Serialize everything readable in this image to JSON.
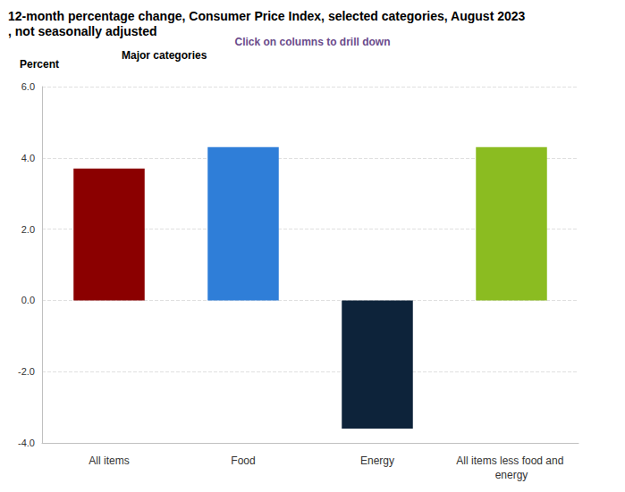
{
  "chart_data": {
    "type": "bar",
    "title": "12-month percentage change, Consumer Price Index, selected categories, August 2023, not seasonally adjusted",
    "subtitle": "Click on columns to drill down",
    "y_label": "Percent",
    "annotation": "Major categories",
    "categories": [
      "All items",
      "Food",
      "Energy",
      "All items less food and energy"
    ],
    "values": [
      3.7,
      4.3,
      -3.6,
      4.3
    ],
    "colors": [
      "#8b0000",
      "#2f7ed8",
      "#0d233a",
      "#8bbc21"
    ],
    "ylim": [
      -4,
      6
    ],
    "yticks": [
      {
        "value": -4,
        "label": "-4.0"
      },
      {
        "value": -2,
        "label": "-2.0"
      },
      {
        "value": 0,
        "label": "0.0"
      },
      {
        "value": 2,
        "label": "2.0"
      },
      {
        "value": 4,
        "label": "4.0"
      },
      {
        "value": 6,
        "label": "6.0"
      }
    ],
    "grid": true
  }
}
